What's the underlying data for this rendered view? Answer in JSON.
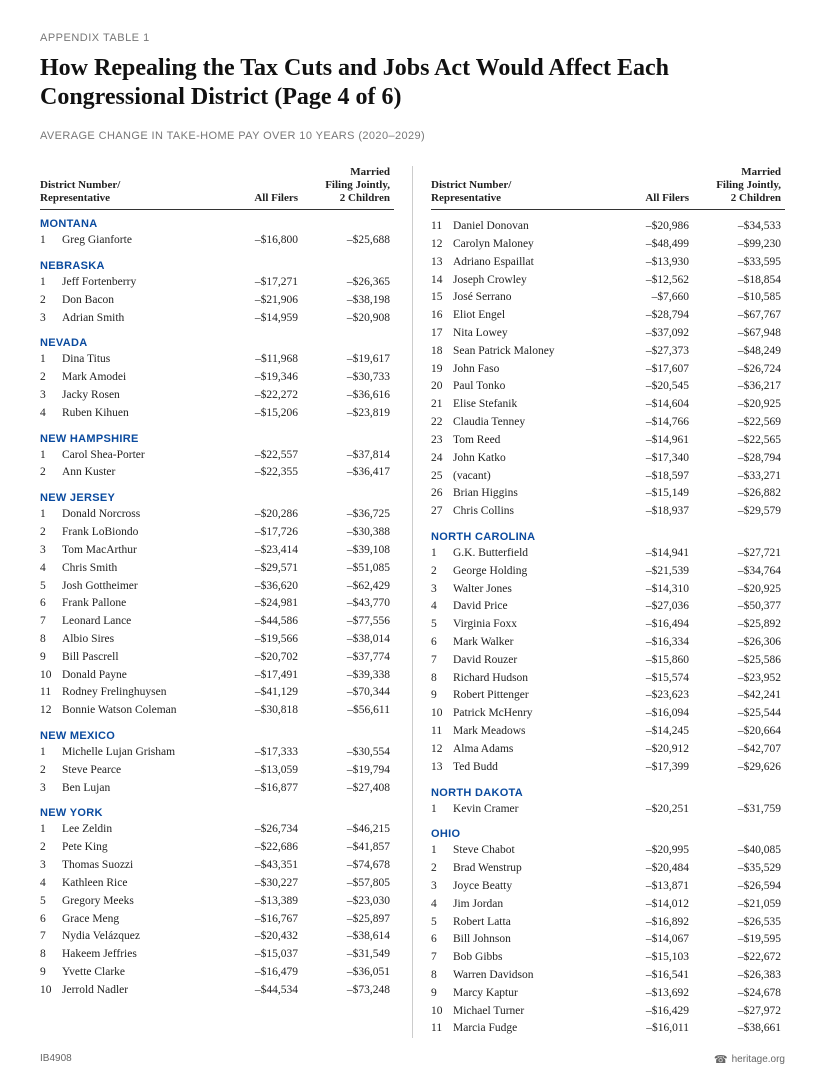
{
  "section_label": "APPENDIX TABLE 1",
  "title": "How Repealing the Tax Cuts and Jobs Act Would Affect Each Congressional District (Page 4 of 6)",
  "subtitle": "AVERAGE CHANGE IN TAKE-HOME PAY OVER 10 YEARS (2020–2029)",
  "headers": {
    "district": "District Number/\nRepresentative",
    "all_filers": "All Filers",
    "married": "Married\nFiling Jointly,\n2 Children"
  },
  "left_column": [
    {
      "state": "MONTANA",
      "rows": [
        {
          "n": "1",
          "name": "Greg Gianforte",
          "all": "–$16,800",
          "mar": "–$25,688"
        }
      ]
    },
    {
      "state": "NEBRASKA",
      "rows": [
        {
          "n": "1",
          "name": "Jeff Fortenberry",
          "all": "–$17,271",
          "mar": "–$26,365"
        },
        {
          "n": "2",
          "name": "Don Bacon",
          "all": "–$21,906",
          "mar": "–$38,198"
        },
        {
          "n": "3",
          "name": "Adrian Smith",
          "all": "–$14,959",
          "mar": "–$20,908"
        }
      ]
    },
    {
      "state": "NEVADA",
      "rows": [
        {
          "n": "1",
          "name": "Dina Titus",
          "all": "–$11,968",
          "mar": "–$19,617"
        },
        {
          "n": "2",
          "name": "Mark Amodei",
          "all": "–$19,346",
          "mar": "–$30,733"
        },
        {
          "n": "3",
          "name": "Jacky Rosen",
          "all": "–$22,272",
          "mar": "–$36,616"
        },
        {
          "n": "4",
          "name": "Ruben Kihuen",
          "all": "–$15,206",
          "mar": "–$23,819"
        }
      ]
    },
    {
      "state": "NEW HAMPSHIRE",
      "rows": [
        {
          "n": "1",
          "name": "Carol Shea-Porter",
          "all": "–$22,557",
          "mar": "–$37,814"
        },
        {
          "n": "2",
          "name": "Ann Kuster",
          "all": "–$22,355",
          "mar": "–$36,417"
        }
      ]
    },
    {
      "state": "NEW JERSEY",
      "rows": [
        {
          "n": "1",
          "name": "Donald Norcross",
          "all": "–$20,286",
          "mar": "–$36,725"
        },
        {
          "n": "2",
          "name": "Frank LoBiondo",
          "all": "–$17,726",
          "mar": "–$30,388"
        },
        {
          "n": "3",
          "name": "Tom MacArthur",
          "all": "–$23,414",
          "mar": "–$39,108"
        },
        {
          "n": "4",
          "name": "Chris Smith",
          "all": "–$29,571",
          "mar": "–$51,085"
        },
        {
          "n": "5",
          "name": "Josh Gottheimer",
          "all": "–$36,620",
          "mar": "–$62,429"
        },
        {
          "n": "6",
          "name": "Frank Pallone",
          "all": "–$24,981",
          "mar": "–$43,770"
        },
        {
          "n": "7",
          "name": "Leonard Lance",
          "all": "–$44,586",
          "mar": "–$77,556"
        },
        {
          "n": "8",
          "name": "Albio Sires",
          "all": "–$19,566",
          "mar": "–$38,014"
        },
        {
          "n": "9",
          "name": "Bill Pascrell",
          "all": "–$20,702",
          "mar": "–$37,774"
        },
        {
          "n": "10",
          "name": "Donald Payne",
          "all": "–$17,491",
          "mar": "–$39,338"
        },
        {
          "n": "11",
          "name": "Rodney Frelinghuysen",
          "all": "–$41,129",
          "mar": "–$70,344"
        },
        {
          "n": "12",
          "name": "Bonnie Watson Coleman",
          "all": "–$30,818",
          "mar": "–$56,611"
        }
      ]
    },
    {
      "state": "NEW MEXICO",
      "rows": [
        {
          "n": "1",
          "name": "Michelle Lujan Grisham",
          "all": "–$17,333",
          "mar": "–$30,554"
        },
        {
          "n": "2",
          "name": "Steve Pearce",
          "all": "–$13,059",
          "mar": "–$19,794"
        },
        {
          "n": "3",
          "name": "Ben Lujan",
          "all": "–$16,877",
          "mar": "–$27,408"
        }
      ]
    },
    {
      "state": "NEW YORK",
      "rows": [
        {
          "n": "1",
          "name": "Lee Zeldin",
          "all": "–$26,734",
          "mar": "–$46,215"
        },
        {
          "n": "2",
          "name": "Pete King",
          "all": "–$22,686",
          "mar": "–$41,857"
        },
        {
          "n": "3",
          "name": "Thomas Suozzi",
          "all": "–$43,351",
          "mar": "–$74,678"
        },
        {
          "n": "4",
          "name": "Kathleen Rice",
          "all": "–$30,227",
          "mar": "–$57,805"
        },
        {
          "n": "5",
          "name": "Gregory Meeks",
          "all": "–$13,389",
          "mar": "–$23,030"
        },
        {
          "n": "6",
          "name": "Grace Meng",
          "all": "–$16,767",
          "mar": "–$25,897"
        },
        {
          "n": "7",
          "name": "Nydia Velázquez",
          "all": "–$20,432",
          "mar": "–$38,614"
        },
        {
          "n": "8",
          "name": "Hakeem Jeffries",
          "all": "–$15,037",
          "mar": "–$31,549"
        },
        {
          "n": "9",
          "name": "Yvette Clarke",
          "all": "–$16,479",
          "mar": "–$36,051"
        },
        {
          "n": "10",
          "name": "Jerrold Nadler",
          "all": "–$44,534",
          "mar": "–$73,248"
        }
      ]
    }
  ],
  "right_column": [
    {
      "rows": [
        {
          "n": "11",
          "name": "Daniel Donovan",
          "all": "–$20,986",
          "mar": "–$34,533"
        },
        {
          "n": "12",
          "name": "Carolyn Maloney",
          "all": "–$48,499",
          "mar": "–$99,230"
        },
        {
          "n": "13",
          "name": "Adriano Espaillat",
          "all": "–$13,930",
          "mar": "–$33,595"
        },
        {
          "n": "14",
          "name": "Joseph Crowley",
          "all": "–$12,562",
          "mar": "–$18,854"
        },
        {
          "n": "15",
          "name": "José Serrano",
          "all": "–$7,660",
          "mar": "–$10,585"
        },
        {
          "n": "16",
          "name": "Eliot Engel",
          "all": "–$28,794",
          "mar": "–$67,767"
        },
        {
          "n": "17",
          "name": "Nita Lowey",
          "all": "–$37,092",
          "mar": "–$67,948"
        },
        {
          "n": "18",
          "name": "Sean Patrick Maloney",
          "all": "–$27,373",
          "mar": "–$48,249"
        },
        {
          "n": "19",
          "name": "John Faso",
          "all": "–$17,607",
          "mar": "–$26,724"
        },
        {
          "n": "20",
          "name": "Paul Tonko",
          "all": "–$20,545",
          "mar": "–$36,217"
        },
        {
          "n": "21",
          "name": "Elise Stefanik",
          "all": "–$14,604",
          "mar": "–$20,925"
        },
        {
          "n": "22",
          "name": "Claudia Tenney",
          "all": "–$14,766",
          "mar": "–$22,569"
        },
        {
          "n": "23",
          "name": "Tom Reed",
          "all": "–$14,961",
          "mar": "–$22,565"
        },
        {
          "n": "24",
          "name": "John Katko",
          "all": "–$17,340",
          "mar": "–$28,794"
        },
        {
          "n": "25",
          "name": "(vacant)",
          "all": "–$18,597",
          "mar": "–$33,271"
        },
        {
          "n": "26",
          "name": "Brian Higgins",
          "all": "–$15,149",
          "mar": "–$26,882"
        },
        {
          "n": "27",
          "name": "Chris Collins",
          "all": "–$18,937",
          "mar": "–$29,579"
        }
      ]
    },
    {
      "state": "NORTH CAROLINA",
      "rows": [
        {
          "n": "1",
          "name": "G.K. Butterfield",
          "all": "–$14,941",
          "mar": "–$27,721"
        },
        {
          "n": "2",
          "name": "George Holding",
          "all": "–$21,539",
          "mar": "–$34,764"
        },
        {
          "n": "3",
          "name": "Walter Jones",
          "all": "–$14,310",
          "mar": "–$20,925"
        },
        {
          "n": "4",
          "name": "David Price",
          "all": "–$27,036",
          "mar": "–$50,377"
        },
        {
          "n": "5",
          "name": "Virginia Foxx",
          "all": "–$16,494",
          "mar": "–$25,892"
        },
        {
          "n": "6",
          "name": "Mark Walker",
          "all": "–$16,334",
          "mar": "–$26,306"
        },
        {
          "n": "7",
          "name": "David Rouzer",
          "all": "–$15,860",
          "mar": "–$25,586"
        },
        {
          "n": "8",
          "name": "Richard Hudson",
          "all": "–$15,574",
          "mar": "–$23,952"
        },
        {
          "n": "9",
          "name": "Robert Pittenger",
          "all": "–$23,623",
          "mar": "–$42,241"
        },
        {
          "n": "10",
          "name": "Patrick McHenry",
          "all": "–$16,094",
          "mar": "–$25,544"
        },
        {
          "n": "11",
          "name": "Mark Meadows",
          "all": "–$14,245",
          "mar": "–$20,664"
        },
        {
          "n": "12",
          "name": "Alma Adams",
          "all": "–$20,912",
          "mar": "–$42,707"
        },
        {
          "n": "13",
          "name": "Ted Budd",
          "all": "–$17,399",
          "mar": "–$29,626"
        }
      ]
    },
    {
      "state": "NORTH DAKOTA",
      "rows": [
        {
          "n": "1",
          "name": "Kevin Cramer",
          "all": "–$20,251",
          "mar": "–$31,759"
        }
      ]
    },
    {
      "state": "OHIO",
      "rows": [
        {
          "n": "1",
          "name": "Steve Chabot",
          "all": "–$20,995",
          "mar": "–$40,085"
        },
        {
          "n": "2",
          "name": "Brad Wenstrup",
          "all": "–$20,484",
          "mar": "–$35,529"
        },
        {
          "n": "3",
          "name": "Joyce Beatty",
          "all": "–$13,871",
          "mar": "–$26,594"
        },
        {
          "n": "4",
          "name": "Jim Jordan",
          "all": "–$14,012",
          "mar": "–$21,059"
        },
        {
          "n": "5",
          "name": "Robert Latta",
          "all": "–$16,892",
          "mar": "–$26,535"
        },
        {
          "n": "6",
          "name": "Bill Johnson",
          "all": "–$14,067",
          "mar": "–$19,595"
        },
        {
          "n": "7",
          "name": "Bob Gibbs",
          "all": "–$15,103",
          "mar": "–$22,672"
        },
        {
          "n": "8",
          "name": "Warren Davidson",
          "all": "–$16,541",
          "mar": "–$26,383"
        },
        {
          "n": "9",
          "name": "Marcy Kaptur",
          "all": "–$13,692",
          "mar": "–$24,678"
        },
        {
          "n": "10",
          "name": "Michael Turner",
          "all": "–$16,429",
          "mar": "–$27,972"
        },
        {
          "n": "11",
          "name": "Marcia Fudge",
          "all": "–$16,011",
          "mar": "–$38,661"
        }
      ]
    }
  ],
  "footer": {
    "left": "IB4908",
    "icon": "☎",
    "right": "heritage.org"
  }
}
